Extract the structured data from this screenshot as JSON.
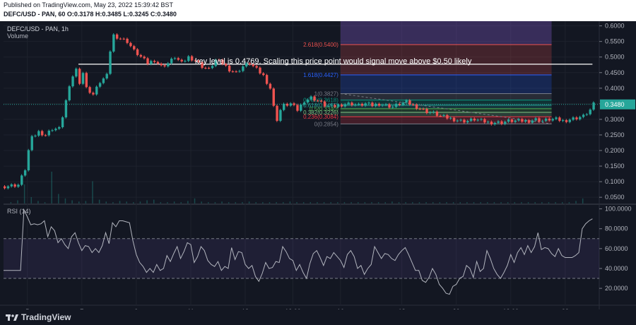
{
  "header": {
    "published": "Published on TradingView.com, May 23, 2022 15:39:42 BST",
    "ohlc": "DEFC/USD - PAN, 60 O:0.3178 H:0.3485 L:0.3245 C:0.3480"
  },
  "legend": {
    "symbol": "DEFC/USD - PAN, 1h",
    "volume_label": "Volume",
    "rsi_label": "RSI (14)"
  },
  "annotation": "key level is 0.4769. Scaling this price point would  signal move above $0.50 likely",
  "price_tag": "0.3480",
  "logo": "TradingView",
  "colors": {
    "up": "#26a69a",
    "down": "#ef5350",
    "rsi": "#b2b5be",
    "rsi_band": "#7e57c2"
  },
  "chart_data": [
    {
      "type": "candlestick",
      "title": "DEFC/USD - PAN, 1h",
      "y_ticks": [
        "0.6000",
        "0.5500",
        "0.5000",
        "0.4500",
        "0.4000",
        "0.3500",
        "0.3000",
        "0.2500",
        "0.2000",
        "0.1500",
        "0.1000",
        "0.0500"
      ],
      "ylim": [
        0.03,
        0.615
      ],
      "x_ticks": [
        "5",
        "7",
        "9",
        "11",
        "13",
        "12:00",
        "16",
        "18",
        "20",
        "12:00",
        "23"
      ],
      "path": [
        [
          0,
          0.085
        ],
        [
          4,
          0.09
        ],
        [
          6,
          0.14
        ],
        [
          7,
          0.2
        ],
        [
          8,
          0.24
        ],
        [
          10,
          0.26
        ],
        [
          12,
          0.25
        ],
        [
          14,
          0.27
        ],
        [
          16,
          0.27
        ],
        [
          17,
          0.31
        ],
        [
          18,
          0.36
        ],
        [
          20,
          0.44
        ],
        [
          21,
          0.46
        ],
        [
          22,
          0.42
        ],
        [
          23,
          0.45
        ],
        [
          24,
          0.4
        ],
        [
          26,
          0.38
        ],
        [
          28,
          0.42
        ],
        [
          30,
          0.44
        ],
        [
          31,
          0.52
        ],
        [
          32,
          0.57
        ],
        [
          34,
          0.56
        ],
        [
          36,
          0.55
        ],
        [
          38,
          0.52
        ],
        [
          40,
          0.5
        ],
        [
          42,
          0.48
        ],
        [
          44,
          0.49
        ],
        [
          46,
          0.47
        ],
        [
          48,
          0.48
        ],
        [
          50,
          0.5
        ],
        [
          52,
          0.48
        ],
        [
          54,
          0.5
        ],
        [
          56,
          0.49
        ],
        [
          58,
          0.47
        ],
        [
          60,
          0.46
        ],
        [
          62,
          0.49
        ],
        [
          64,
          0.48
        ],
        [
          66,
          0.46
        ],
        [
          68,
          0.45
        ],
        [
          70,
          0.47
        ],
        [
          72,
          0.48
        ],
        [
          74,
          0.46
        ],
        [
          76,
          0.44
        ],
        [
          78,
          0.4
        ],
        [
          79,
          0.34
        ],
        [
          80,
          0.3
        ],
        [
          81,
          0.33
        ],
        [
          82,
          0.345
        ],
        [
          84,
          0.35
        ],
        [
          86,
          0.33
        ],
        [
          88,
          0.36
        ],
        [
          90,
          0.37
        ],
        [
          92,
          0.36
        ],
        [
          94,
          0.345
        ],
        [
          96,
          0.34
        ],
        [
          98,
          0.345
        ],
        [
          100,
          0.35
        ],
        [
          102,
          0.35
        ],
        [
          104,
          0.345
        ],
        [
          106,
          0.35
        ],
        [
          108,
          0.345
        ],
        [
          110,
          0.35
        ],
        [
          112,
          0.345
        ],
        [
          114,
          0.34
        ],
        [
          116,
          0.35
        ],
        [
          118,
          0.355
        ],
        [
          120,
          0.345
        ],
        [
          122,
          0.335
        ],
        [
          124,
          0.325
        ],
        [
          126,
          0.32
        ],
        [
          128,
          0.31
        ],
        [
          130,
          0.305
        ],
        [
          132,
          0.3
        ],
        [
          134,
          0.295
        ],
        [
          136,
          0.295
        ],
        [
          138,
          0.3
        ],
        [
          140,
          0.295
        ],
        [
          142,
          0.29
        ],
        [
          144,
          0.29
        ],
        [
          146,
          0.29
        ],
        [
          148,
          0.295
        ],
        [
          150,
          0.295
        ],
        [
          152,
          0.295
        ],
        [
          154,
          0.295
        ],
        [
          156,
          0.3
        ],
        [
          158,
          0.295
        ],
        [
          160,
          0.3
        ],
        [
          162,
          0.3
        ],
        [
          164,
          0.295
        ],
        [
          166,
          0.3
        ],
        [
          168,
          0.305
        ],
        [
          170,
          0.31
        ],
        [
          171,
          0.32
        ],
        [
          172,
          0.33
        ],
        [
          173,
          0.348
        ]
      ],
      "volume": [
        0,
        0.02,
        0.05,
        0.3,
        0.1,
        0.04,
        0.02,
        0.5,
        0.15,
        0.08,
        0.05,
        0.03,
        0.04,
        0.35,
        0.06,
        0.03,
        0.02,
        0.04,
        0.03,
        0.02,
        0.03,
        0.05,
        0.06,
        0.02,
        0.02,
        0.03,
        0.02,
        0.04,
        0.08,
        0.03,
        0.02,
        0.02,
        0.03,
        0.02,
        0.02,
        0.02,
        0.03,
        0.02,
        0.02,
        0.02,
        0.02,
        0.02,
        0.03,
        0.02,
        0.02,
        0.02,
        0.02,
        0.02,
        0.02,
        0.02,
        0.02,
        0.02,
        0.02,
        0.02,
        0.02,
        0.02,
        0.02,
        0.03,
        0.02,
        0.02,
        0.02,
        0.02,
        0.02,
        0.02,
        0.02,
        0.02,
        0.02,
        0.02,
        0.02,
        0.02,
        0.02,
        0.02,
        0.02,
        0.02,
        0.02,
        0.02,
        0.02,
        0.02,
        0.02,
        0.02,
        0.02,
        0.02,
        0.02,
        0.02,
        0.04,
        0.08
      ],
      "fib": {
        "levels": [
          {
            "label": "2.618(0.5400)",
            "value": 0.54,
            "color": "#ef5350"
          },
          {
            "label": "1.618(0.4427)",
            "value": 0.4427,
            "color": "#2962ff"
          },
          {
            "label": "1(0.3827)",
            "value": 0.3827,
            "color": "#787b86"
          },
          {
            "label": "0.786(0.3618)",
            "value": 0.3618,
            "color": "#089981"
          },
          {
            "label": "0.618(0.3455)",
            "value": 0.3455,
            "color": "#26a69a"
          },
          {
            "label": "0.5(0.3340)",
            "value": 0.334,
            "color": "#4caf50"
          },
          {
            "label": "0.382(0.3226)",
            "value": 0.3226,
            "color": "#81c784"
          },
          {
            "label": "0.236(0.3084)",
            "value": 0.3084,
            "color": "#f23645"
          },
          {
            "label": "0(0.2854)",
            "value": 0.2854,
            "color": "#787b86"
          }
        ],
        "top": 0.615,
        "x_start": 99,
        "x_end": 161
      },
      "key_level": 0.4769
    },
    {
      "type": "line",
      "title": "RSI (14)",
      "y_ticks": [
        "100.0000",
        "80.0000",
        "60.0000",
        "40.0000",
        "20.0000"
      ],
      "ylim": [
        3,
        104
      ],
      "band": [
        30,
        70
      ],
      "values": [
        38,
        38,
        38,
        38,
        38,
        38,
        99,
        92,
        84,
        85,
        84,
        85,
        88,
        72,
        82,
        78,
        66,
        70,
        64,
        60,
        72,
        76,
        66,
        58,
        63,
        62,
        56,
        60,
        56,
        63,
        76,
        65,
        86,
        82,
        88,
        88,
        87,
        86,
        68,
        54,
        46,
        42,
        36,
        40,
        36,
        44,
        38,
        40,
        53,
        47,
        55,
        62,
        50,
        57,
        66,
        64,
        46,
        52,
        62,
        58,
        48,
        44,
        42,
        47,
        38,
        42,
        40,
        61,
        49,
        57,
        56,
        44,
        40,
        43,
        32,
        27,
        35,
        46,
        40,
        41,
        47,
        46,
        62,
        57,
        50,
        48,
        38,
        44,
        36,
        30,
        45,
        55,
        58,
        51,
        43,
        52,
        50,
        56,
        52,
        48,
        41,
        54,
        58,
        52,
        40,
        43,
        34,
        40,
        44,
        62,
        56,
        50,
        55,
        54,
        50,
        48,
        54,
        58,
        61,
        54,
        46,
        38,
        38,
        28,
        26,
        31,
        40,
        34,
        24,
        20,
        15,
        14,
        22,
        24,
        30,
        32,
        43,
        40,
        31,
        47,
        37,
        40,
        58,
        50,
        40,
        34,
        30,
        36,
        43,
        54,
        46,
        56,
        61,
        54,
        63,
        56,
        62,
        76,
        59,
        61,
        60,
        55,
        52,
        60,
        53,
        51,
        51,
        51,
        53,
        56,
        80,
        85,
        88,
        90
      ]
    }
  ]
}
